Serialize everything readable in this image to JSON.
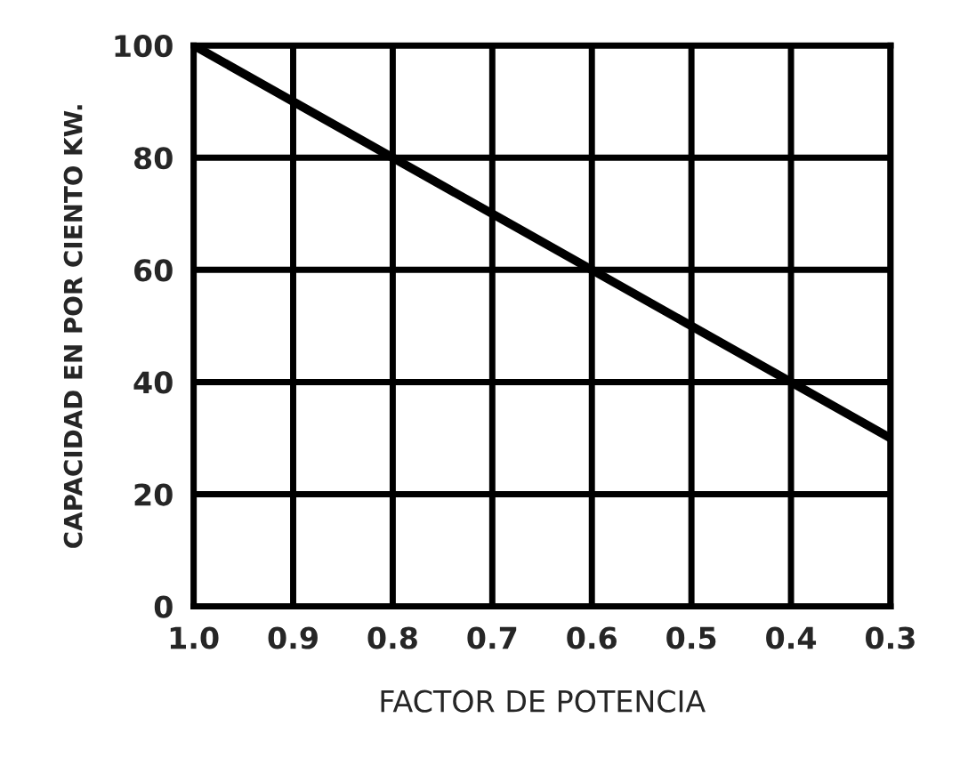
{
  "chart_data": {
    "type": "line",
    "xlabel": "FACTOR DE POTENCIA",
    "ylabel": "CAPACIDAD EN POR CIENTO KW.",
    "x": [
      1.0,
      0.3
    ],
    "series": [
      {
        "color": "#000000",
        "values": [
          100,
          30
        ]
      }
    ],
    "xlim": [
      1.0,
      0.3
    ],
    "ylim": [
      0,
      100
    ],
    "xticks": [
      {
        "value": 1.0,
        "label": "1.0"
      },
      0.9,
      0.8,
      0.7,
      0.6,
      0.5,
      0.4,
      0.3
    ],
    "yticks": [
      0,
      20,
      40,
      60,
      80,
      100
    ],
    "grid": true,
    "marker": "none",
    "line_style": "solid"
  }
}
